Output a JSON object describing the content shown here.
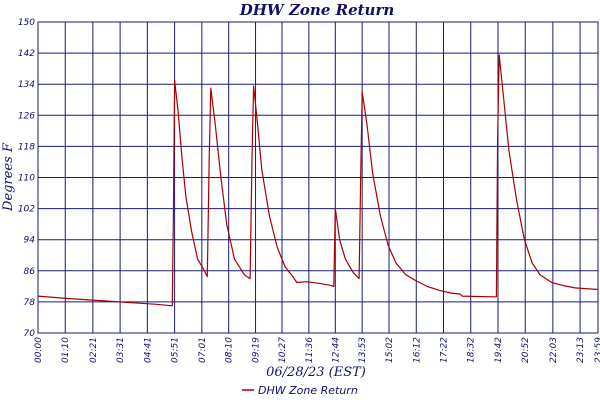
{
  "chart_data": {
    "type": "line",
    "title": "DHW Zone Return",
    "xlabel": "06/28/23 (EST)",
    "ylabel": "Degrees F",
    "ylim": [
      70,
      150
    ],
    "y_ticks": [
      "70",
      "78",
      "86",
      "94",
      "102",
      "110",
      "118",
      "126",
      "134",
      "142",
      "150"
    ],
    "x_ticks": [
      "00:00",
      "01:10",
      "02:21",
      "03:31",
      "04:41",
      "05:51",
      "07:01",
      "08:10",
      "09:19",
      "10:27",
      "11:36",
      "12:44",
      "13:53",
      "15:02",
      "16:12",
      "17:22",
      "18:32",
      "19:42",
      "20:52",
      "22:03",
      "23:13",
      "23:59"
    ],
    "grid": true,
    "legend_position": "bottom-center",
    "colors": {
      "series": "#aa0000",
      "grid": "#1a1a7a",
      "text": "#10106a"
    },
    "series": [
      {
        "name": "DHW Zone Return",
        "points": [
          [
            "00:00",
            79.5
          ],
          [
            "01:00",
            79.0
          ],
          [
            "02:00",
            78.6
          ],
          [
            "03:00",
            78.2
          ],
          [
            "04:00",
            77.8
          ],
          [
            "05:00",
            77.4
          ],
          [
            "05:45",
            77.0
          ],
          [
            "05:48",
            100.0
          ],
          [
            "05:51",
            135.0
          ],
          [
            "06:00",
            127.0
          ],
          [
            "06:10",
            115.0
          ],
          [
            "06:20",
            105.0
          ],
          [
            "06:35",
            96.0
          ],
          [
            "06:50",
            89.0
          ],
          [
            "07:05",
            86.5
          ],
          [
            "07:15",
            84.5
          ],
          [
            "07:20",
            115.0
          ],
          [
            "07:24",
            133.0
          ],
          [
            "07:35",
            124.0
          ],
          [
            "07:50",
            110.0
          ],
          [
            "08:05",
            98.0
          ],
          [
            "08:25",
            89.0
          ],
          [
            "08:50",
            85.0
          ],
          [
            "09:05",
            84.0
          ],
          [
            "09:10",
            115.0
          ],
          [
            "09:14",
            133.5
          ],
          [
            "09:22",
            126.0
          ],
          [
            "09:35",
            112.0
          ],
          [
            "09:55",
            100.0
          ],
          [
            "10:15",
            92.0
          ],
          [
            "10:35",
            87.0
          ],
          [
            "10:55",
            84.5
          ],
          [
            "11:05",
            83.0
          ],
          [
            "11:30",
            83.2
          ],
          [
            "12:00",
            82.8
          ],
          [
            "12:30",
            82.3
          ],
          [
            "12:40",
            82.0
          ],
          [
            "12:44",
            102.0
          ],
          [
            "12:55",
            94.0
          ],
          [
            "13:10",
            89.0
          ],
          [
            "13:30",
            85.5
          ],
          [
            "13:45",
            84.0
          ],
          [
            "13:50",
            115.0
          ],
          [
            "13:53",
            132.0
          ],
          [
            "14:05",
            124.0
          ],
          [
            "14:20",
            111.0
          ],
          [
            "14:40",
            100.0
          ],
          [
            "15:00",
            92.5
          ],
          [
            "15:20",
            88.0
          ],
          [
            "15:45",
            85.0
          ],
          [
            "16:10",
            83.5
          ],
          [
            "16:40",
            82.0
          ],
          [
            "17:10",
            81.0
          ],
          [
            "17:40",
            80.3
          ],
          [
            "18:05",
            80.0
          ],
          [
            "18:10",
            79.5
          ],
          [
            "18:50",
            79.4
          ],
          [
            "19:30",
            79.3
          ],
          [
            "19:38",
            79.3
          ],
          [
            "19:41",
            120.0
          ],
          [
            "19:45",
            141.5
          ],
          [
            "19:55",
            132.0
          ],
          [
            "20:10",
            117.0
          ],
          [
            "20:30",
            104.0
          ],
          [
            "20:50",
            94.0
          ],
          [
            "21:10",
            88.0
          ],
          [
            "21:30",
            85.0
          ],
          [
            "22:00",
            83.0
          ],
          [
            "22:30",
            82.2
          ],
          [
            "23:00",
            81.6
          ],
          [
            "23:59",
            81.2
          ]
        ]
      }
    ]
  }
}
